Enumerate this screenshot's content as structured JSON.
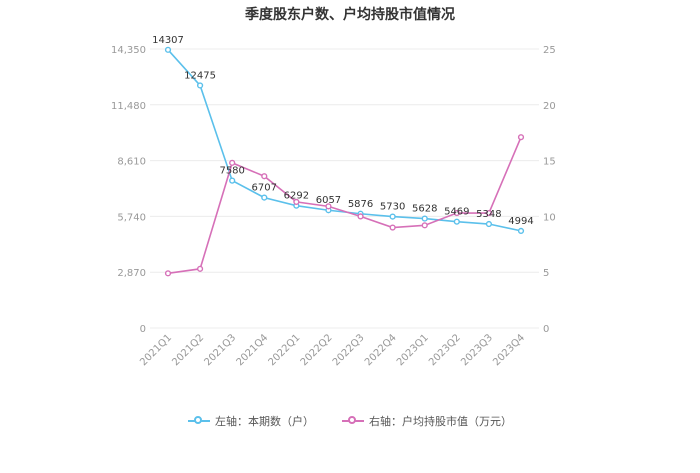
{
  "chart_data": {
    "type": "line",
    "title": "季度股东户数、户均持股市值情况",
    "categories": [
      "2021Q1",
      "2021Q2",
      "2021Q3",
      "2021Q4",
      "2022Q1",
      "2022Q2",
      "2022Q3",
      "2022Q4",
      "2023Q1",
      "2023Q2",
      "2023Q3",
      "2023Q4"
    ],
    "left_axis": {
      "ticks": [
        "0",
        "2,870",
        "5,740",
        "8,610",
        "11,480",
        "14,350"
      ],
      "ylim": [
        0,
        14350
      ]
    },
    "right_axis": {
      "ticks": [
        "0",
        "5",
        "10",
        "15",
        "20",
        "25"
      ],
      "ylim": [
        0,
        25
      ]
    },
    "series": [
      {
        "name": "左轴：本期数（户）",
        "axis": "left",
        "color": "#5bc0eb",
        "values": [
          14307,
          12475,
          7580,
          6707,
          6292,
          6057,
          5876,
          5730,
          5628,
          5469,
          5348,
          4994
        ],
        "labels": [
          "14307",
          "12475",
          "7580",
          "6707",
          "6292",
          "6057",
          "5876",
          "5730",
          "5628",
          "5469",
          "5348",
          "4994"
        ]
      },
      {
        "name": "右轴：户均持股市值（万元）",
        "axis": "right",
        "color": "#d670b8",
        "values": [
          4.9,
          5.3,
          14.8,
          13.6,
          11.3,
          10.9,
          10.0,
          9.0,
          9.2,
          10.3,
          10.3,
          17.1
        ]
      }
    ],
    "grid": true,
    "legend_position": "bottom"
  }
}
